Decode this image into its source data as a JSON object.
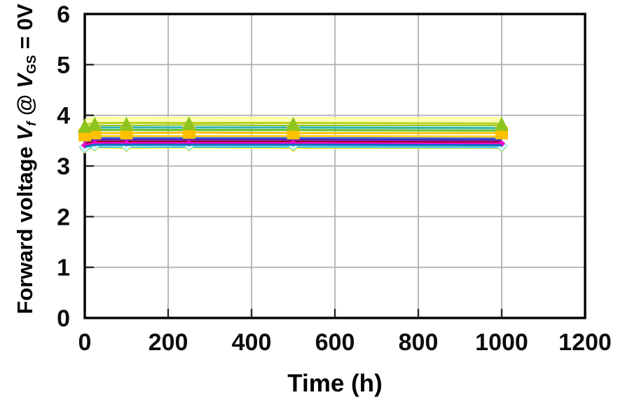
{
  "figure": {
    "xlabel": "Time (h)",
    "ylabel": {
      "prefix": "Forward voltage ",
      "v1": "V",
      "sub1": "f",
      "at": " @ ",
      "v2": "V",
      "sub2": "GS",
      "eq": " = 0V"
    }
  },
  "colors": {
    "background": "#ffffff",
    "axis_border": "#000000",
    "grid": "#b3b3b3",
    "tick": "#262626",
    "tick_label": "#0d0d0d"
  },
  "chart_data": {
    "type": "line",
    "title": "",
    "xlabel": "Time (h)",
    "ylabel": "Forward voltage Vf @ VGS = 0V",
    "xlim": [
      0,
      1200
    ],
    "ylim": [
      0,
      6
    ],
    "xticks": [
      0,
      200,
      400,
      600,
      800,
      1000,
      1200
    ],
    "yticks": [
      0,
      1,
      2,
      3,
      4,
      5,
      6
    ],
    "grid": true,
    "legend": false,
    "x": [
      0,
      24,
      100,
      250,
      500,
      1000
    ],
    "series": [
      {
        "name": "violet-diamond",
        "color": "#7d2fd0",
        "marker": "diamond",
        "marker_size": 13,
        "values": [
          3.36,
          3.4,
          3.39,
          3.4,
          3.4,
          3.39
        ]
      },
      {
        "name": "yellow-diamond",
        "color": "#ffe600",
        "marker": "diamond",
        "marker_size": 13,
        "values": [
          3.33,
          3.37,
          3.36,
          3.37,
          3.36,
          3.36
        ]
      },
      {
        "name": "sky-blue",
        "color": "#38c6f0",
        "marker": "none",
        "values": [
          3.34,
          3.38,
          3.38,
          3.38,
          3.38,
          3.37
        ]
      },
      {
        "name": "pale-cyan-diamond",
        "color": "#ccffff",
        "line_color": "#b0f0f0",
        "marker": "diamond",
        "marker_size": 16,
        "marker_stroke": "#7fd6d6",
        "values": [
          3.37,
          3.41,
          3.4,
          3.41,
          3.41,
          3.4
        ]
      },
      {
        "name": "pale-yellow-1",
        "color": "#ffff8c",
        "marker": "none",
        "values": [
          3.91,
          3.95,
          3.94,
          3.95,
          3.94,
          3.94
        ]
      },
      {
        "name": "pale-yellow-2",
        "color": "#ffffb5",
        "marker": "none",
        "values": [
          3.86,
          3.9,
          3.89,
          3.9,
          3.89,
          3.89
        ]
      },
      {
        "name": "lime",
        "color": "#bed118",
        "marker": "none",
        "values": [
          3.81,
          3.85,
          3.85,
          3.85,
          3.85,
          3.84
        ]
      },
      {
        "name": "teal",
        "color": "#2eb5b0",
        "marker": "none",
        "values": [
          3.72,
          3.76,
          3.76,
          3.76,
          3.76,
          3.75
        ]
      },
      {
        "name": "green",
        "color": "#5fc132",
        "marker": "none",
        "values": [
          3.67,
          3.71,
          3.71,
          3.71,
          3.71,
          3.7
        ]
      },
      {
        "name": "yellow",
        "color": "#ffd21f",
        "marker": "none",
        "values": [
          3.55,
          3.59,
          3.59,
          3.59,
          3.59,
          3.58
        ]
      },
      {
        "name": "royal-blue",
        "color": "#4766e8",
        "marker": "none",
        "values": [
          3.51,
          3.55,
          3.55,
          3.55,
          3.55,
          3.54
        ]
      },
      {
        "name": "navy",
        "color": "#2b2bac",
        "marker": "none",
        "values": [
          3.48,
          3.52,
          3.52,
          3.52,
          3.52,
          3.51
        ]
      },
      {
        "name": "violet",
        "color": "#8229d6",
        "marker": "none",
        "values": [
          3.46,
          3.5,
          3.5,
          3.5,
          3.5,
          3.49
        ]
      },
      {
        "name": "dark-red",
        "color": "#94002e",
        "marker": "none",
        "values": [
          3.44,
          3.48,
          3.48,
          3.48,
          3.48,
          3.47
        ]
      },
      {
        "name": "magenta",
        "color": "#ff00cc",
        "marker": "diamond",
        "marker_size": 10,
        "values": [
          3.41,
          3.45,
          3.45,
          3.45,
          3.45,
          3.44
        ]
      },
      {
        "name": "blue",
        "color": "#0070c0",
        "marker": "none",
        "values": [
          3.38,
          3.42,
          3.42,
          3.42,
          3.42,
          3.41
        ]
      },
      {
        "name": "orange-square",
        "color": "#ffc000",
        "marker": "square",
        "marker_size": 18,
        "values": [
          3.61,
          3.65,
          3.65,
          3.66,
          3.65,
          3.65
        ]
      },
      {
        "name": "green-triangle",
        "color": "#8ec41e",
        "marker": "triangle",
        "marker_size": 20,
        "line_width": 2,
        "values": [
          3.76,
          3.8,
          3.8,
          3.81,
          3.8,
          3.8
        ]
      }
    ]
  }
}
